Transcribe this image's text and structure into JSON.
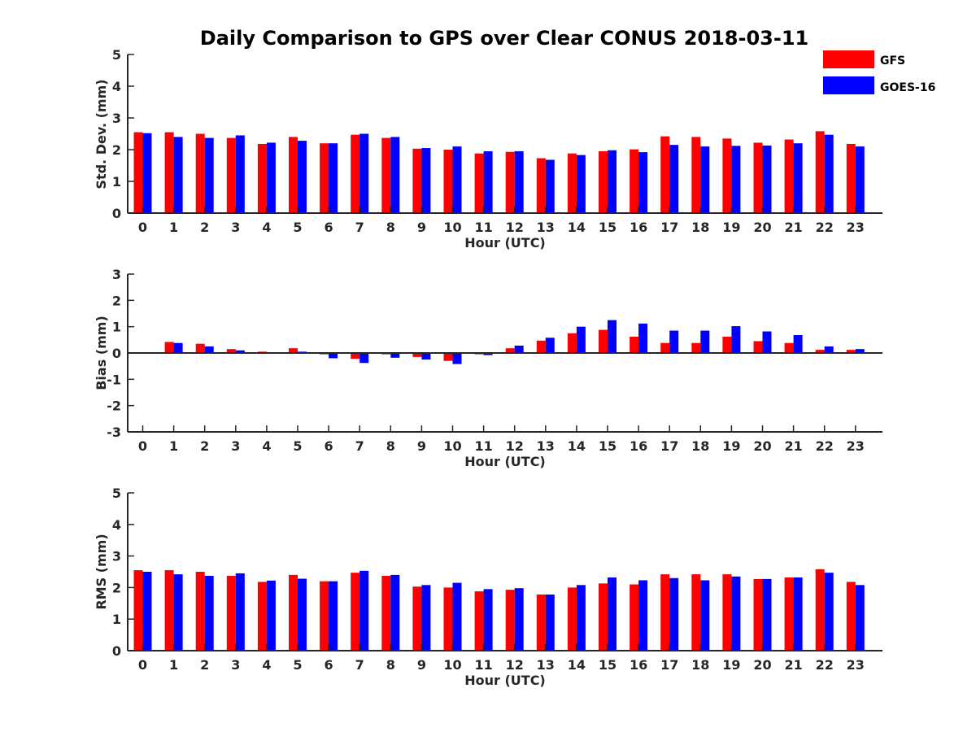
{
  "title": "Daily Comparison to GPS over Clear CONUS 2018-03-11",
  "colors": {
    "GFS": "#ff0000",
    "GOES-16": "#0000ff"
  },
  "chart_data": [
    {
      "type": "bar",
      "id": "std",
      "xlabel": "Hour (UTC)",
      "ylabel": "Std. Dev. (mm)",
      "ylim": [
        0,
        5
      ],
      "yticks": [
        "0",
        "1",
        "2",
        "3",
        "4",
        "5"
      ],
      "categories": [
        "0",
        "1",
        "2",
        "3",
        "4",
        "5",
        "6",
        "7",
        "8",
        "9",
        "10",
        "11",
        "12",
        "13",
        "14",
        "15",
        "16",
        "17",
        "18",
        "19",
        "20",
        "21",
        "22",
        "23"
      ],
      "series": [
        {
          "name": "GFS",
          "values": [
            2.55,
            2.55,
            2.5,
            2.37,
            2.18,
            2.4,
            2.2,
            2.47,
            2.37,
            2.03,
            2.0,
            1.88,
            1.93,
            1.73,
            1.88,
            1.95,
            2.01,
            2.42,
            2.4,
            2.35,
            2.22,
            2.32,
            2.58,
            2.18
          ]
        },
        {
          "name": "GOES-16",
          "values": [
            2.52,
            2.4,
            2.37,
            2.45,
            2.22,
            2.28,
            2.2,
            2.5,
            2.4,
            2.05,
            2.1,
            1.95,
            1.95,
            1.68,
            1.83,
            1.98,
            1.92,
            2.15,
            2.1,
            2.12,
            2.13,
            2.2,
            2.47,
            2.1
          ]
        }
      ]
    },
    {
      "type": "bar",
      "id": "bias",
      "xlabel": "Hour (UTC)",
      "ylabel": "Bias (mm)",
      "ylim": [
        -3,
        3
      ],
      "yticks": [
        "-3",
        "-2",
        "-1",
        "0",
        "1",
        "2",
        "3"
      ],
      "categories": [
        "0",
        "1",
        "2",
        "3",
        "4",
        "5",
        "6",
        "7",
        "8",
        "9",
        "10",
        "11",
        "12",
        "13",
        "14",
        "15",
        "16",
        "17",
        "18",
        "19",
        "20",
        "21",
        "22",
        "23"
      ],
      "series": [
        {
          "name": "GFS",
          "values": [
            0.0,
            0.42,
            0.35,
            0.15,
            0.05,
            0.18,
            -0.05,
            -0.22,
            -0.05,
            -0.15,
            -0.3,
            -0.05,
            0.18,
            0.47,
            0.75,
            0.88,
            0.62,
            0.38,
            0.38,
            0.62,
            0.45,
            0.38,
            0.12,
            0.12
          ]
        },
        {
          "name": "GOES-16",
          "values": [
            0.0,
            0.38,
            0.25,
            0.1,
            0.03,
            0.05,
            -0.2,
            -0.38,
            -0.18,
            -0.25,
            -0.42,
            -0.08,
            0.28,
            0.58,
            1.0,
            1.25,
            1.12,
            0.85,
            0.85,
            1.02,
            0.82,
            0.68,
            0.25,
            0.15
          ]
        }
      ]
    },
    {
      "type": "bar",
      "id": "rms",
      "xlabel": "Hour (UTC)",
      "ylabel": "RMS (mm)",
      "ylim": [
        0,
        5
      ],
      "yticks": [
        "0",
        "1",
        "2",
        "3",
        "4",
        "5"
      ],
      "categories": [
        "0",
        "1",
        "2",
        "3",
        "4",
        "5",
        "6",
        "7",
        "8",
        "9",
        "10",
        "11",
        "12",
        "13",
        "14",
        "15",
        "16",
        "17",
        "18",
        "19",
        "20",
        "21",
        "22",
        "23"
      ],
      "series": [
        {
          "name": "GFS",
          "values": [
            2.55,
            2.55,
            2.5,
            2.37,
            2.18,
            2.4,
            2.2,
            2.47,
            2.37,
            2.03,
            2.0,
            1.88,
            1.93,
            1.78,
            2.0,
            2.13,
            2.1,
            2.42,
            2.42,
            2.42,
            2.27,
            2.32,
            2.58,
            2.18
          ]
        },
        {
          "name": "GOES-16",
          "values": [
            2.5,
            2.42,
            2.37,
            2.45,
            2.22,
            2.28,
            2.2,
            2.53,
            2.4,
            2.08,
            2.15,
            1.95,
            1.98,
            1.78,
            2.08,
            2.32,
            2.23,
            2.3,
            2.23,
            2.35,
            2.27,
            2.32,
            2.47,
            2.08
          ]
        }
      ]
    }
  ]
}
